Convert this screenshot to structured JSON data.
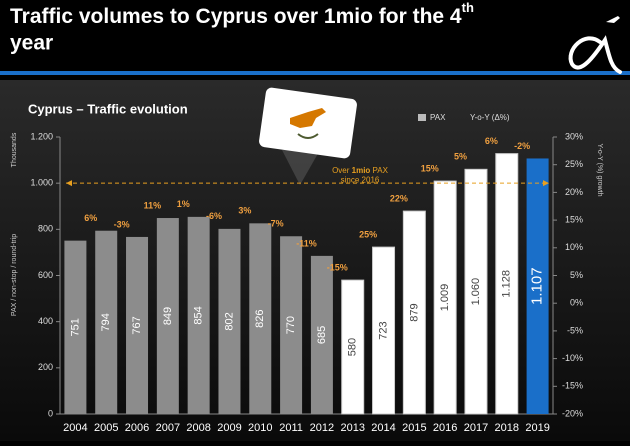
{
  "chart_data": {
    "type": "bar",
    "page_title": {
      "text": "Traffic volumes to Cyprus over 1mio for the 4",
      "sup": "th",
      "rest": "year"
    },
    "title": "Cyprus – Traffic evolution",
    "y_label_1": "Thousands",
    "y_label_2": "PAX / non-stop / round-trip",
    "y2_label": "Y-o-Y (%) growth",
    "categories": [
      "2004",
      "2005",
      "2006",
      "2007",
      "2008",
      "2009",
      "2010",
      "2011",
      "2012",
      "2013",
      "2014",
      "2015",
      "2016",
      "2017",
      "2018",
      "2019"
    ],
    "series": [
      {
        "name": "PAX",
        "values": [
          751,
          794,
          767,
          849,
          854,
          802,
          826,
          770,
          685,
          580,
          723,
          879,
          1009,
          1060,
          1128,
          1107
        ],
        "value_labels": [
          "751",
          "794",
          "767",
          "849",
          "854",
          "802",
          "826",
          "770",
          "685",
          "580",
          "723",
          "879",
          "1.009",
          "1.060",
          "1.128",
          "1.107"
        ],
        "colors": [
          "#8c8c8c",
          "#8c8c8c",
          "#8c8c8c",
          "#8c8c8c",
          "#8c8c8c",
          "#8c8c8c",
          "#8c8c8c",
          "#8c8c8c",
          "#8c8c8c",
          "#ffffff",
          "#ffffff",
          "#ffffff",
          "#ffffff",
          "#ffffff",
          "#ffffff",
          "#1a6fc9"
        ]
      },
      {
        "name": "Y-o-Y (Δ%)",
        "axis": "y2",
        "color": "#f0a040",
        "values": [
          null,
          6,
          -3,
          11,
          1,
          -6,
          3,
          -7,
          -11,
          -15,
          25,
          22,
          15,
          5,
          6,
          -2
        ],
        "value_labels": [
          null,
          "6%",
          "-3%",
          "11%",
          "1%",
          "-6%",
          "3%",
          "-7%",
          "-11%",
          "-15%",
          "25%",
          "22%",
          "15%",
          "5%",
          "6%",
          "-2%"
        ]
      }
    ],
    "ylim": [
      0,
      1200
    ],
    "yticks": [
      0,
      200,
      400,
      600,
      800,
      {
        "value": 1000,
        "label": "1.000"
      },
      {
        "value": 1200,
        "label": "1.200"
      }
    ],
    "y2lim": [
      -20,
      30
    ],
    "y2ticks": [
      {
        "value": -20,
        "label": "-20%"
      },
      {
        "value": -15,
        "label": "-15%"
      },
      {
        "value": -10,
        "label": "-10%"
      },
      {
        "value": -5,
        "label": "-5%"
      },
      {
        "value": 0,
        "label": "0%"
      },
      {
        "value": 5,
        "label": "5%"
      },
      {
        "value": 10,
        "label": "10%"
      },
      {
        "value": 15,
        "label": "15%"
      },
      {
        "value": 20,
        "label": "20%"
      },
      {
        "value": 25,
        "label": "25%"
      },
      {
        "value": 30,
        "label": "30%"
      }
    ],
    "annotation": {
      "value": 1000,
      "pre": "Over ",
      "bold": "1mio",
      "post": " PAX",
      "line2": "since 2016",
      "color": "#e8a020"
    }
  }
}
